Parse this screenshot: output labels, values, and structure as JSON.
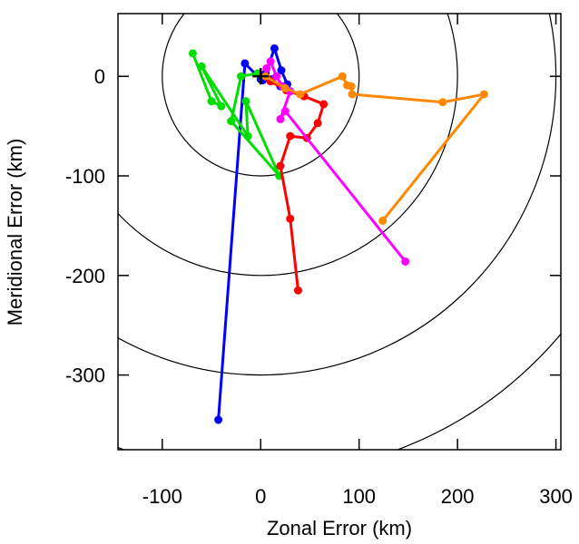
{
  "chart_data": {
    "type": "scatter",
    "title": "",
    "xlabel": "Zonal Error (km)",
    "ylabel": "Meridional Error (km)",
    "xlim": [
      -145,
      305
    ],
    "ylim": [
      -375,
      63
    ],
    "xticks": [
      -100,
      0,
      100,
      200,
      300
    ],
    "xtick_labels": [
      "-100",
      "0",
      "100",
      "200",
      "300"
    ],
    "yticks": [
      0,
      -100,
      -200,
      -300
    ],
    "ytick_labels": [
      "0",
      "-100",
      "-200",
      "-300"
    ],
    "grid": false,
    "range_circles_km": [
      100,
      200,
      300,
      400
    ],
    "center_marker": "plus",
    "series": [
      {
        "color": "#0000ff",
        "points": [
          [
            -43,
            -345
          ],
          [
            -16,
            13
          ],
          [
            0,
            -3
          ],
          [
            5,
            3
          ],
          [
            14,
            28
          ],
          [
            21,
            6
          ],
          [
            27,
            -8
          ],
          [
            20,
            -10
          ],
          [
            11,
            -3
          ],
          [
            2,
            -4
          ]
        ]
      },
      {
        "color": "#00dd00",
        "points": [
          [
            -69,
            23
          ],
          [
            -50,
            -25
          ],
          [
            -40,
            -30
          ],
          [
            -60,
            10
          ],
          [
            -13,
            -60
          ],
          [
            -15,
            -25
          ],
          [
            19,
            -100
          ],
          [
            -30,
            -45
          ],
          [
            -20,
            0
          ],
          [
            -3,
            3
          ]
        ]
      },
      {
        "color": "#ff0000",
        "points": [
          [
            38,
            -215
          ],
          [
            30,
            -143
          ],
          [
            20,
            -90
          ],
          [
            30,
            -60
          ],
          [
            47,
            -62
          ],
          [
            58,
            -47
          ],
          [
            64,
            -28
          ],
          [
            44,
            -20
          ],
          [
            26,
            -14
          ],
          [
            10,
            -5
          ]
        ]
      },
      {
        "color": "#ff00ff",
        "points": [
          [
            147,
            -186
          ],
          [
            25,
            -35
          ],
          [
            20,
            -43
          ],
          [
            30,
            -15
          ],
          [
            22,
            -10
          ],
          [
            16,
            0
          ],
          [
            10,
            15
          ],
          [
            6,
            8
          ]
        ]
      },
      {
        "color": "#ff8800",
        "points": [
          [
            124,
            -145
          ],
          [
            227,
            -18
          ],
          [
            185,
            -26
          ],
          [
            93,
            -18
          ],
          [
            92,
            -10
          ],
          [
            88,
            -9
          ],
          [
            83,
            0
          ],
          [
            40,
            -18
          ],
          [
            25,
            -12
          ],
          [
            5,
            0
          ]
        ]
      }
    ]
  }
}
